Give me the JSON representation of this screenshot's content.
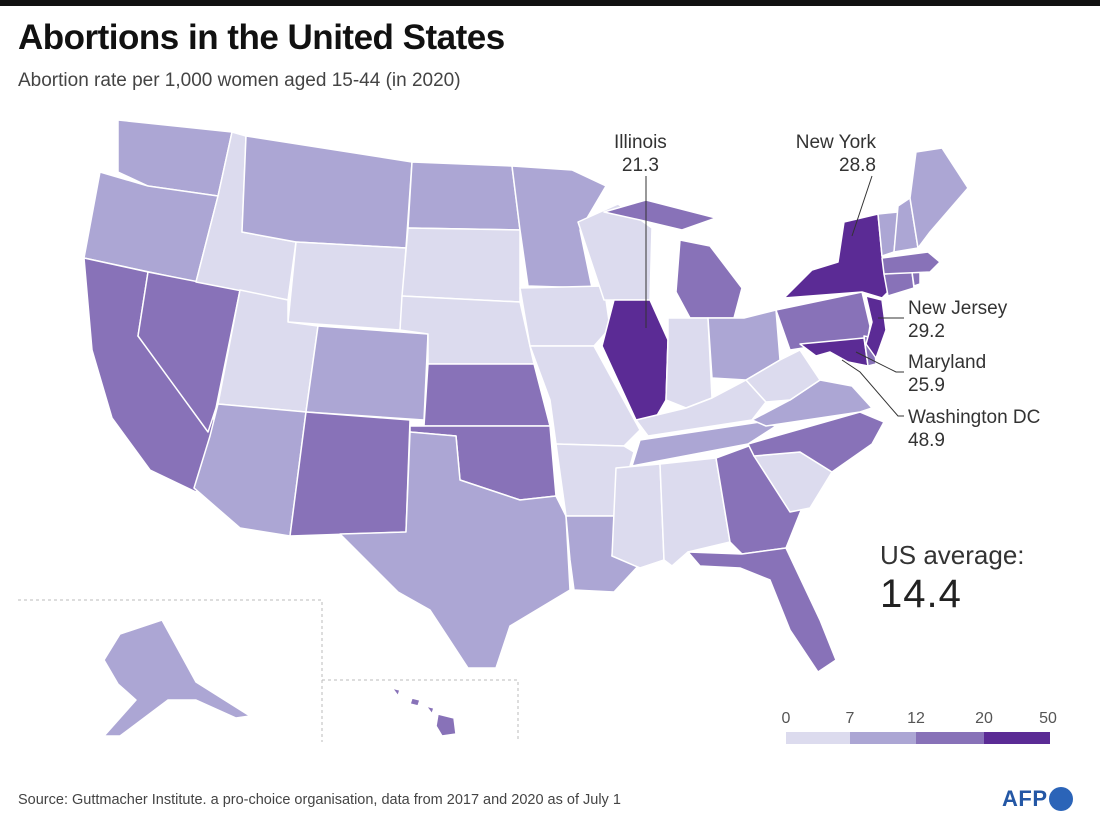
{
  "title": "Abortions in the United States",
  "subtitle": "Abortion rate per 1,000 women aged 15-44 (in 2020)",
  "colors": {
    "bin1": "#dcdbee",
    "bin2": "#aca6d4",
    "bin3": "#8872b8",
    "bin4": "#5b2b95",
    "border": "#ffffff",
    "inset_frame": "#bbbbbb"
  },
  "legend": {
    "ticks": [
      "0",
      "7",
      "12",
      "20",
      "50"
    ]
  },
  "callouts": [
    {
      "name": "Illinois",
      "value": "21.3"
    },
    {
      "name": "New York",
      "value": "28.8"
    },
    {
      "name": "New Jersey",
      "value": "29.2"
    },
    {
      "name": "Maryland",
      "value": "25.9"
    },
    {
      "name": "Washington DC",
      "value": "48.9"
    }
  ],
  "average": {
    "label": "US average:",
    "value": "14.4"
  },
  "source": "Source: Guttmacher Institute. a pro-choice organisation, data from 2017 and 2020 as of July 1",
  "logo_text": "AFP"
}
